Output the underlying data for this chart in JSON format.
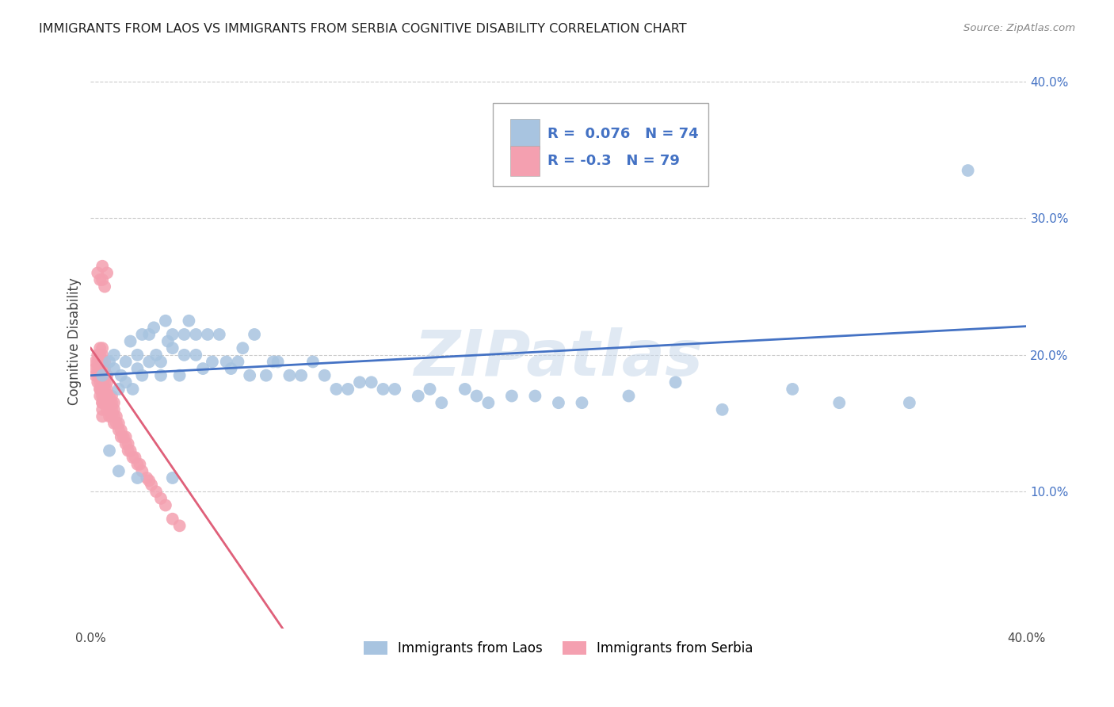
{
  "title": "IMMIGRANTS FROM LAOS VS IMMIGRANTS FROM SERBIA COGNITIVE DISABILITY CORRELATION CHART",
  "source": "Source: ZipAtlas.com",
  "ylabel": "Cognitive Disability",
  "watermark": "ZIPatlas",
  "xlim": [
    0.0,
    0.4
  ],
  "ylim": [
    0.0,
    0.42
  ],
  "xticks": [
    0.0,
    0.08,
    0.16,
    0.24,
    0.32,
    0.4
  ],
  "yticks": [
    0.1,
    0.2,
    0.3,
    0.4
  ],
  "xtick_labels": [
    "0.0%",
    "",
    "",
    "",
    "",
    "40.0%"
  ],
  "ytick_labels": [
    "10.0%",
    "20.0%",
    "30.0%",
    "40.0%"
  ],
  "laos_R": 0.076,
  "laos_N": 74,
  "serbia_R": -0.3,
  "serbia_N": 79,
  "laos_color": "#a8c4e0",
  "serbia_color": "#f4a0b0",
  "laos_line_color": "#4472c4",
  "serbia_line_color": "#e0607a",
  "grid_color": "#cccccc",
  "background_color": "#ffffff",
  "laos_scatter_x": [
    0.005,
    0.008,
    0.01,
    0.01,
    0.012,
    0.013,
    0.015,
    0.015,
    0.017,
    0.018,
    0.02,
    0.02,
    0.022,
    0.022,
    0.025,
    0.025,
    0.027,
    0.028,
    0.03,
    0.03,
    0.032,
    0.033,
    0.035,
    0.035,
    0.038,
    0.04,
    0.04,
    0.042,
    0.045,
    0.045,
    0.048,
    0.05,
    0.052,
    0.055,
    0.058,
    0.06,
    0.063,
    0.065,
    0.068,
    0.07,
    0.075,
    0.078,
    0.08,
    0.085,
    0.09,
    0.095,
    0.1,
    0.105,
    0.11,
    0.115,
    0.12,
    0.125,
    0.13,
    0.14,
    0.145,
    0.15,
    0.16,
    0.165,
    0.17,
    0.18,
    0.19,
    0.2,
    0.21,
    0.23,
    0.25,
    0.27,
    0.3,
    0.32,
    0.35,
    0.375,
    0.008,
    0.012,
    0.02,
    0.035
  ],
  "laos_scatter_y": [
    0.185,
    0.195,
    0.19,
    0.2,
    0.175,
    0.185,
    0.195,
    0.18,
    0.21,
    0.175,
    0.19,
    0.2,
    0.215,
    0.185,
    0.195,
    0.215,
    0.22,
    0.2,
    0.185,
    0.195,
    0.225,
    0.21,
    0.205,
    0.215,
    0.185,
    0.215,
    0.2,
    0.225,
    0.2,
    0.215,
    0.19,
    0.215,
    0.195,
    0.215,
    0.195,
    0.19,
    0.195,
    0.205,
    0.185,
    0.215,
    0.185,
    0.195,
    0.195,
    0.185,
    0.185,
    0.195,
    0.185,
    0.175,
    0.175,
    0.18,
    0.18,
    0.175,
    0.175,
    0.17,
    0.175,
    0.165,
    0.175,
    0.17,
    0.165,
    0.17,
    0.17,
    0.165,
    0.165,
    0.17,
    0.18,
    0.16,
    0.175,
    0.165,
    0.165,
    0.335,
    0.13,
    0.115,
    0.11,
    0.11
  ],
  "serbia_scatter_x": [
    0.002,
    0.002,
    0.002,
    0.003,
    0.003,
    0.003,
    0.003,
    0.003,
    0.004,
    0.004,
    0.004,
    0.004,
    0.004,
    0.004,
    0.004,
    0.004,
    0.004,
    0.005,
    0.005,
    0.005,
    0.005,
    0.005,
    0.005,
    0.005,
    0.005,
    0.005,
    0.005,
    0.005,
    0.005,
    0.006,
    0.006,
    0.006,
    0.006,
    0.006,
    0.006,
    0.006,
    0.007,
    0.007,
    0.007,
    0.007,
    0.007,
    0.007,
    0.008,
    0.008,
    0.008,
    0.008,
    0.009,
    0.009,
    0.009,
    0.009,
    0.01,
    0.01,
    0.01,
    0.01,
    0.011,
    0.011,
    0.012,
    0.012,
    0.013,
    0.013,
    0.014,
    0.015,
    0.015,
    0.016,
    0.016,
    0.017,
    0.018,
    0.019,
    0.02,
    0.021,
    0.022,
    0.024,
    0.025,
    0.026,
    0.028,
    0.03,
    0.032,
    0.035,
    0.038
  ],
  "serbia_scatter_y": [
    0.185,
    0.19,
    0.195,
    0.18,
    0.185,
    0.19,
    0.195,
    0.2,
    0.175,
    0.18,
    0.185,
    0.19,
    0.195,
    0.2,
    0.205,
    0.175,
    0.17,
    0.165,
    0.17,
    0.175,
    0.18,
    0.185,
    0.19,
    0.195,
    0.2,
    0.205,
    0.165,
    0.16,
    0.155,
    0.165,
    0.17,
    0.175,
    0.18,
    0.185,
    0.19,
    0.195,
    0.16,
    0.165,
    0.17,
    0.175,
    0.18,
    0.185,
    0.155,
    0.16,
    0.165,
    0.17,
    0.155,
    0.16,
    0.165,
    0.17,
    0.15,
    0.155,
    0.16,
    0.165,
    0.15,
    0.155,
    0.145,
    0.15,
    0.14,
    0.145,
    0.14,
    0.135,
    0.14,
    0.13,
    0.135,
    0.13,
    0.125,
    0.125,
    0.12,
    0.12,
    0.115,
    0.11,
    0.108,
    0.105,
    0.1,
    0.095,
    0.09,
    0.08,
    0.075
  ],
  "serbia_extra_high_x": [
    0.003,
    0.004,
    0.005,
    0.005,
    0.006,
    0.007
  ],
  "serbia_extra_high_y": [
    0.26,
    0.255,
    0.265,
    0.255,
    0.25,
    0.26
  ],
  "serbia_line_x": [
    0.0,
    0.2
  ],
  "laos_line_intercept": 0.185,
  "laos_line_slope": 0.09,
  "serbia_line_intercept": 0.205,
  "serbia_line_slope": -2.5
}
